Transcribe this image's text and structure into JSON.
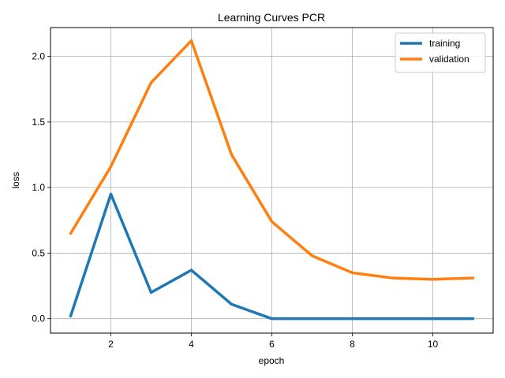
{
  "chart_data": {
    "type": "line",
    "title": "Learning Curves PCR",
    "xlabel": "epoch",
    "ylabel": "loss",
    "xlim": [
      0.5,
      11.5
    ],
    "ylim": [
      -0.11,
      2.22
    ],
    "xticks": [
      2,
      4,
      6,
      8,
      10
    ],
    "yticks": [
      0.0,
      0.5,
      1.0,
      1.5,
      2.0
    ],
    "xtick_labels": [
      "2",
      "4",
      "6",
      "8",
      "10"
    ],
    "ytick_labels": [
      "0.0",
      "0.5",
      "1.0",
      "1.5",
      "2.0"
    ],
    "grid": true,
    "legend_position": "top-right",
    "x": [
      1,
      2,
      3,
      4,
      5,
      6,
      7,
      8,
      9,
      10,
      11
    ],
    "series": [
      {
        "name": "training",
        "color": "#1f77b4",
        "values": [
          0.02,
          0.95,
          0.2,
          0.37,
          0.11,
          0.0,
          0.0,
          0.0,
          0.0,
          0.0,
          0.0
        ]
      },
      {
        "name": "validation",
        "color": "#ff7f0e",
        "values": [
          0.65,
          1.16,
          1.8,
          2.12,
          1.25,
          0.74,
          0.48,
          0.35,
          0.31,
          0.3,
          0.31
        ]
      }
    ]
  }
}
